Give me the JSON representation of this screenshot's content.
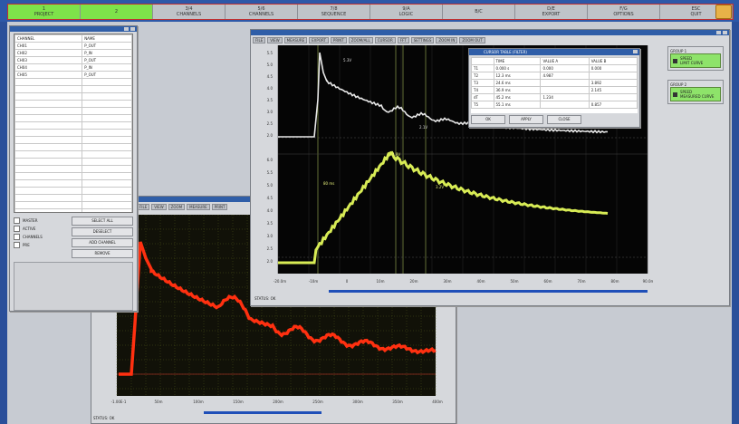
{
  "taskbar": {
    "buttons": [
      {
        "label": "1",
        "sub": "PROJECT",
        "active": true
      },
      {
        "label": "2",
        "sub": "",
        "active": true
      },
      {
        "label": "3/4",
        "sub": "CHANNELS",
        "active": false
      },
      {
        "label": "5/6",
        "sub": "CHANNELS",
        "active": false
      },
      {
        "label": "7/8",
        "sub": "SEQUENCE",
        "active": false
      },
      {
        "label": "9/A",
        "sub": "LOGIC",
        "active": false
      },
      {
        "label": "B/C",
        "sub": "",
        "active": false
      },
      {
        "label": "D/E",
        "sub": "EXPORT",
        "active": false
      },
      {
        "label": "F/G",
        "sub": "OPTIONS",
        "active": false
      },
      {
        "label": "ESC",
        "sub": "QUIT",
        "active": false
      }
    ]
  },
  "channel_list": {
    "headers": [
      "CHANNEL",
      "NAME"
    ],
    "rows": [
      [
        "CH01",
        "P_OUT"
      ],
      [
        "CH02",
        "P_IN"
      ],
      [
        "CH03",
        "P_OUT"
      ],
      [
        "CH04",
        "P_IN"
      ],
      [
        "CH05",
        "P_OUT"
      ]
    ],
    "options": [
      "MASTER",
      "ACTIVE",
      "CHANNELS",
      "PRE"
    ],
    "buttons": [
      "SELECT ALL",
      "DESELECT",
      "ADD CHANNEL",
      "REMOVE"
    ]
  },
  "main_window": {
    "toolbar": [
      "FILE",
      "VIEW",
      "MEASURE",
      "EXPORT",
      "PRINT",
      "ZOOM/ALL",
      "CURSOR",
      "FFT",
      "SETTINGS",
      "ZOOM IN",
      "ZOOM OUT"
    ],
    "status": "STATUS: OK",
    "cursor_table": {
      "title": "CURSOR TABLE (FILTER)",
      "headers": [
        "",
        "TIME",
        "VALUE A",
        "VALUE B"
      ],
      "rows": [
        [
          "T1",
          "0.000 s",
          "0.000",
          "0.000"
        ],
        [
          "T2",
          "12.3 ms",
          "4.987",
          ""
        ],
        [
          "T3",
          "24.6 ms",
          "",
          "3.892"
        ],
        [
          "T4",
          "36.9 ms",
          "",
          "2.145"
        ],
        [
          "dT",
          "45.2 ms",
          "1.234",
          ""
        ],
        [
          "T5",
          "55.1 ms",
          "",
          "0.857"
        ]
      ],
      "buttons": [
        "OK",
        "APPLY",
        "CLOSE"
      ]
    },
    "side_panel": {
      "groups": [
        {
          "title": "GROUP 1",
          "items": [
            "SPEED",
            "LIMIT CURVE"
          ]
        },
        {
          "title": "GROUP 2",
          "items": [
            "SPEED",
            "MEASURED CURVE"
          ]
        }
      ]
    }
  },
  "lower_window": {
    "toolbar": [
      "FILE",
      "VIEW",
      "ZOOM",
      "MEASURE",
      "PRINT"
    ],
    "status": "STATUS: OK"
  },
  "charts": {
    "white": {
      "color": "#e8e8e8",
      "label_peak": "5.3V",
      "label_osc": "2.1V"
    },
    "yellow": {
      "color": "#d8ec55",
      "label_peak": "4.9V",
      "label_rise": "80 ms",
      "label_end": "3.2V"
    },
    "red": {
      "color": "#ff3010"
    },
    "main_x_ticks": [
      "-20.0m",
      "-10m",
      "0",
      "10m",
      "20m",
      "30m",
      "40m",
      "50m",
      "60m",
      "70m",
      "80m",
      "90.0m"
    ],
    "red_x_ticks": [
      "-1.00E-1",
      "50m",
      "100m",
      "150m",
      "200m",
      "250m",
      "300m",
      "350m",
      "400m"
    ],
    "white_y_ticks": [
      "5.5",
      "5.0",
      "4.5",
      "4.0",
      "3.5",
      "3.0",
      "2.5",
      "2.0"
    ],
    "yellow_y_ticks": [
      "6.0",
      "5.5",
      "5.0",
      "4.5",
      "4.0",
      "3.5",
      "3.0",
      "2.5",
      "2.0"
    ]
  }
}
